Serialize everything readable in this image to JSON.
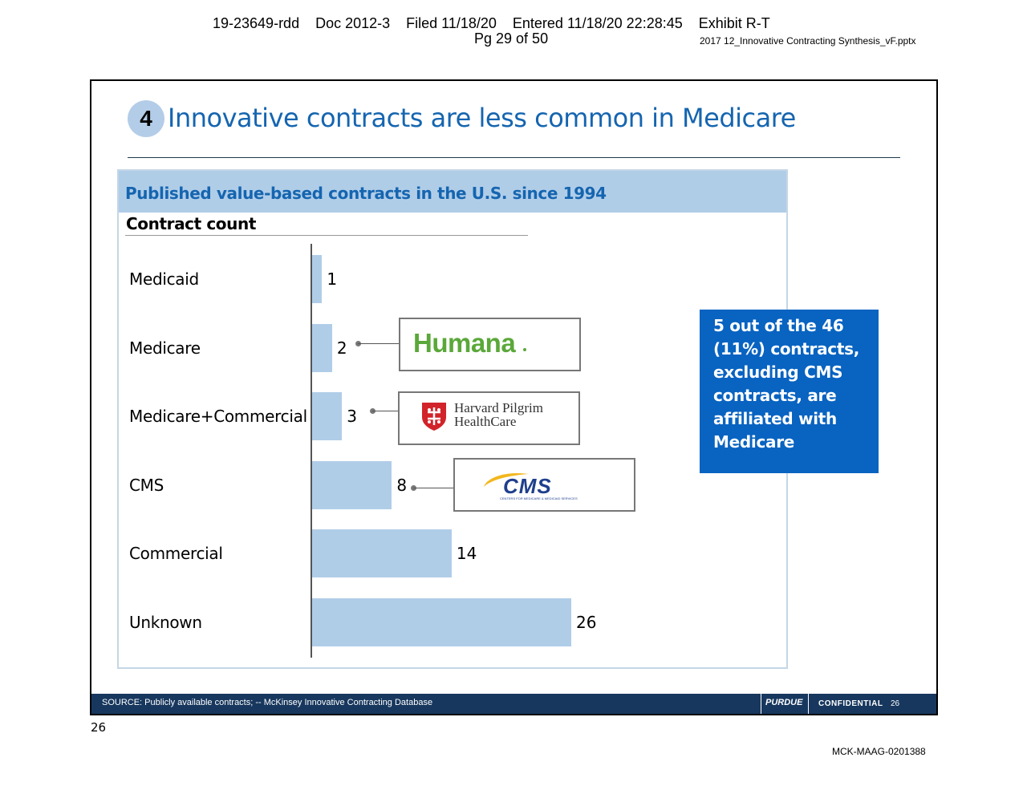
{
  "page_header": {
    "filing_line": "19-23649-rdd    Doc 2012-3    Filed 11/18/20    Entered 11/18/20 22:28:45    Exhibit R-T",
    "page_line": "Pg 29 of 50",
    "file_name": "2017 12_Innovative Contracting Synthesis_vF.pptx"
  },
  "slide": {
    "number": "4",
    "title": "Innovative contracts are less common in Medicare",
    "chart_header": "Published value-based contracts in the U.S. since 1994",
    "callout": "5 out of the 46 (11%) contracts, excluding CMS contracts, are affiliated with Medicare",
    "logos": {
      "humana": "Humana",
      "harvard_line1": "Harvard Pilgrim",
      "harvard_line2": "HealthCare",
      "cms": "CMS",
      "cms_sub": "CENTERS FOR MEDICARE & MEDICAID SERVICES"
    },
    "footer": {
      "source": "SOURCE: Publicly available contracts; -- McKinsey Innovative Contracting Database",
      "confidential": "CONFIDENTIAL",
      "page_no": "26",
      "brand": "PURDUE"
    },
    "colors": {
      "bar": "#b0cde8",
      "title": "#1565b0",
      "callout": "#0863c1",
      "footer": "#17375e"
    }
  },
  "chart_data": {
    "type": "bar",
    "orientation": "horizontal",
    "title": "Published value-based contracts in the U.S. since 1994",
    "xlabel": "Contract count",
    "categories": [
      "Medicaid",
      "Medicare",
      "Medicare+Commercial",
      "CMS",
      "Commercial",
      "Unknown"
    ],
    "values": [
      1,
      2,
      3,
      8,
      14,
      26
    ],
    "xlim": [
      0,
      26
    ]
  },
  "page_footer": {
    "page_number": "26",
    "bates": "MCK-MAAG-0201388"
  }
}
